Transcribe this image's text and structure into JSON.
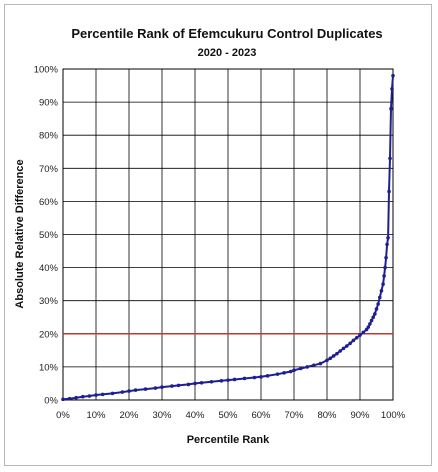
{
  "chart_data": {
    "type": "scatter",
    "title": "Percentile Rank of Efemcukuru Control Duplicates",
    "subtitle": "2020 - 2023",
    "xlabel": "Percentile Rank",
    "ylabel": "Absolute Relative Difference",
    "xlim": [
      0,
      100
    ],
    "ylim": [
      0,
      100
    ],
    "x_ticks": [
      "0%",
      "10%",
      "20%",
      "30%",
      "40%",
      "50%",
      "60%",
      "70%",
      "80%",
      "90%",
      "100%"
    ],
    "y_ticks": [
      "0%",
      "10%",
      "20%",
      "30%",
      "40%",
      "50%",
      "60%",
      "70%",
      "80%",
      "90%",
      "100%"
    ],
    "grid": true,
    "legend": "none",
    "colors": {
      "series": "#1f1f8f",
      "threshold": "#c0392b",
      "grid": "#000000"
    },
    "threshold_line": {
      "y": 20
    },
    "series": [
      {
        "values_x": [
          0,
          2,
          4,
          6,
          8,
          10,
          12,
          15,
          18,
          20,
          22,
          25,
          28,
          30,
          33,
          35,
          38,
          40,
          42,
          45,
          48,
          50,
          52,
          55,
          58,
          60,
          62,
          65,
          67,
          69,
          70,
          72,
          74,
          76,
          78,
          80,
          81,
          82,
          83,
          84,
          85,
          86,
          87,
          88,
          89,
          90,
          91,
          92,
          92.5,
          93,
          93.5,
          94,
          94.5,
          95,
          95.5,
          96,
          96.5,
          97,
          97.3,
          97.6,
          97.9,
          98.2,
          98.5,
          98.8,
          99.1,
          99.4,
          99.7,
          100
        ],
        "values_y": [
          0.2,
          0.4,
          0.7,
          1.0,
          1.2,
          1.5,
          1.7,
          2.0,
          2.4,
          2.7,
          3.0,
          3.3,
          3.6,
          3.9,
          4.2,
          4.4,
          4.7,
          5.0,
          5.2,
          5.5,
          5.8,
          6.0,
          6.2,
          6.5,
          6.8,
          7.0,
          7.3,
          7.8,
          8.2,
          8.6,
          9.0,
          9.5,
          10.0,
          10.5,
          11.0,
          12.0,
          12.6,
          13.3,
          14.0,
          14.8,
          15.6,
          16.3,
          17.1,
          18.0,
          18.8,
          19.6,
          20.4,
          21.3,
          22.0,
          23.0,
          24.0,
          25.0,
          26.0,
          27.5,
          29.0,
          31.0,
          33.0,
          35.0,
          37.5,
          40.0,
          43.0,
          47.0,
          49.0,
          63.0,
          73.0,
          88.0,
          94.0,
          98.0
        ]
      }
    ]
  }
}
